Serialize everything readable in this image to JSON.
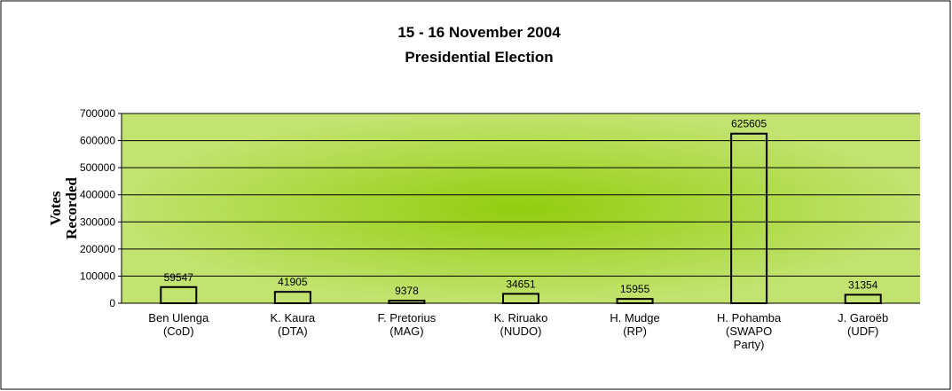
{
  "chart_data": {
    "type": "bar",
    "title": [
      "15 - 16 November 2004",
      "Presidential Election"
    ],
    "y_label": "Votes Recorded",
    "categories": [
      "Ben Ulenga (CoD)",
      "K. Kaura (DTA)",
      "F. Pretorius (MAG)",
      "K. Riruako (NUDO)",
      "H. Mudge (RP)",
      "H. Pohamba (SWAPO Party)",
      "J. Garoëb (UDF)"
    ],
    "values": [
      59547,
      41905,
      9378,
      34651,
      15955,
      625605,
      31354
    ],
    "color": "#000000",
    "ylim": [
      0,
      700000
    ],
    "yticks": [
      0,
      100000,
      200000,
      300000,
      400000,
      500000,
      600000,
      700000
    ],
    "grid": true
  }
}
